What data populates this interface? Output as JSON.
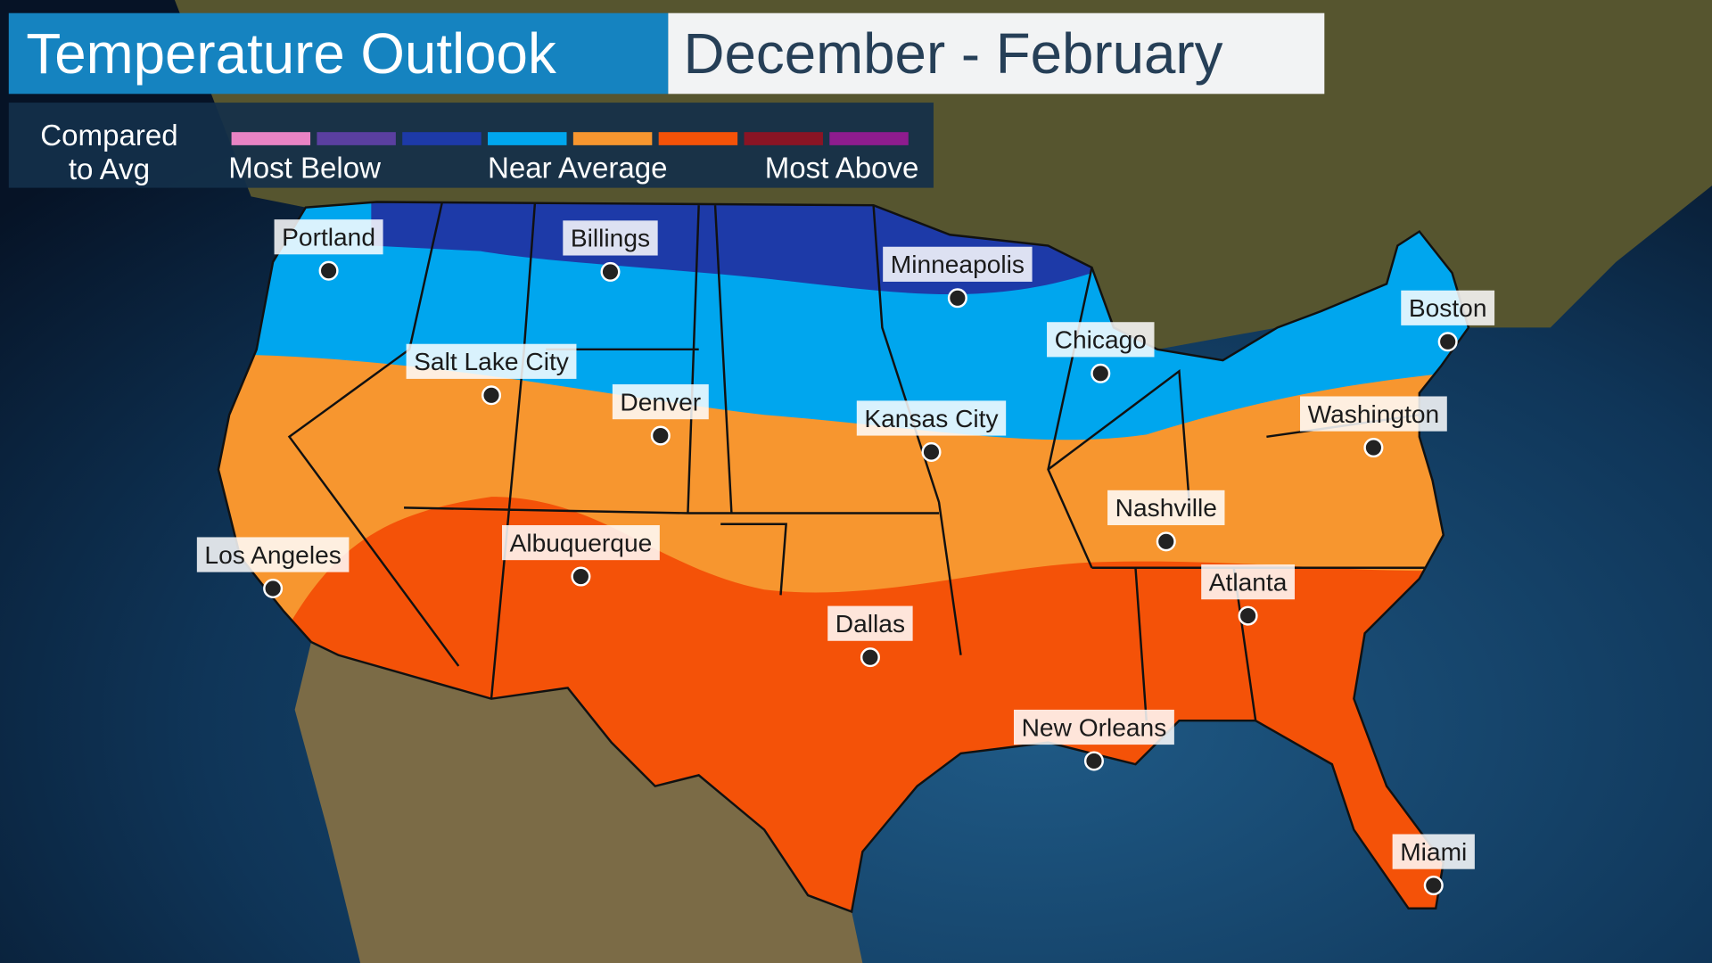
{
  "header": {
    "title": "Temperature Outlook",
    "subtitle": "December - February"
  },
  "legend": {
    "title_lines": [
      "Compared",
      "to Avg"
    ],
    "colors": [
      "#e883c4",
      "#5a3fa0",
      "#1d3aa8",
      "#00a6ee",
      "#f7962f",
      "#f45208",
      "#8a1424",
      "#8e1c8e"
    ],
    "labels": [
      "Most Below",
      "Near Average",
      "Most Above"
    ]
  },
  "cities": [
    "Portland",
    "Billings",
    "Minneapolis",
    "Boston",
    "Salt Lake City",
    "Chicago",
    "Denver",
    "Kansas City",
    "Washington",
    "Nashville",
    "Los Angeles",
    "Albuquerque",
    "Atlanta",
    "Dallas",
    "New Orleans",
    "Miami"
  ]
}
